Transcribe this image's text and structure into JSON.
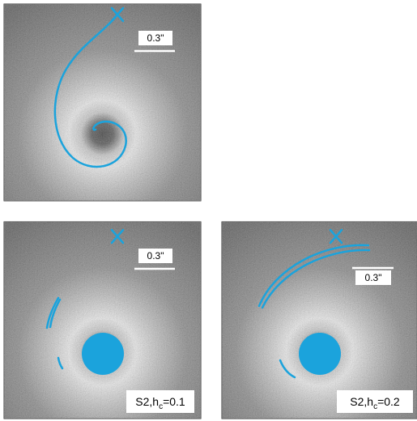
{
  "panels": [
    {
      "scale_label": "0.3\""
    },
    {
      "scale_label": "0.3\"",
      "caption": {
        "prefix": "S2,h",
        "subscript": "c",
        "suffix": "=0.1"
      }
    },
    {
      "scale_label": "0.3\"",
      "caption": {
        "prefix": "S2,h",
        "subscript": "c",
        "suffix": "=0.2"
      }
    }
  ]
}
